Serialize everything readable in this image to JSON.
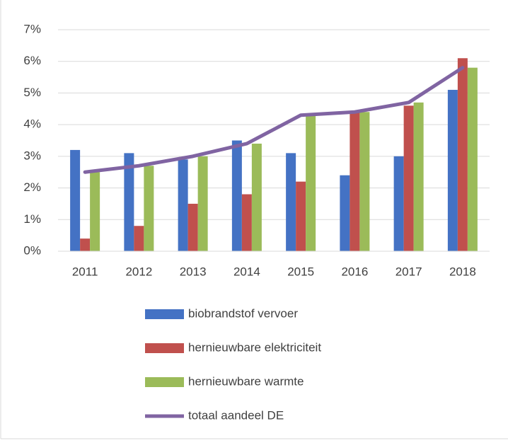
{
  "chart_data": {
    "type": "bar",
    "categories": [
      "2011",
      "2012",
      "2013",
      "2014",
      "2015",
      "2016",
      "2017",
      "2018"
    ],
    "series": [
      {
        "name": "biobrandstof vervoer",
        "color": "#4472c4",
        "values": [
          3.2,
          3.1,
          2.9,
          3.5,
          3.1,
          2.4,
          3.0,
          5.1
        ]
      },
      {
        "name": "hernieuwbare elektriciteit",
        "color": "#c0504d",
        "values": [
          0.4,
          0.8,
          1.5,
          1.8,
          2.2,
          4.4,
          4.6,
          6.1
        ]
      },
      {
        "name": "hernieuwbare warmte",
        "color": "#9bbb59",
        "values": [
          2.5,
          2.7,
          3.0,
          3.4,
          4.3,
          4.4,
          4.7,
          5.8
        ]
      },
      {
        "name": "totaal aandeel DE",
        "color": "#8064a2",
        "type": "line",
        "values": [
          2.5,
          2.7,
          3.0,
          3.4,
          4.3,
          4.4,
          4.7,
          5.8
        ]
      }
    ],
    "ylim": [
      0,
      7
    ],
    "yticks": [
      {
        "value": 0,
        "label": "0%"
      },
      {
        "value": 1,
        "label": "1%"
      },
      {
        "value": 2,
        "label": "2%"
      },
      {
        "value": 3,
        "label": "3%"
      },
      {
        "value": 4,
        "label": "4%"
      },
      {
        "value": 5,
        "label": "5%"
      },
      {
        "value": 6,
        "label": "6%"
      },
      {
        "value": 7,
        "label": "7%"
      }
    ],
    "grid": true,
    "legend": "bottom"
  }
}
